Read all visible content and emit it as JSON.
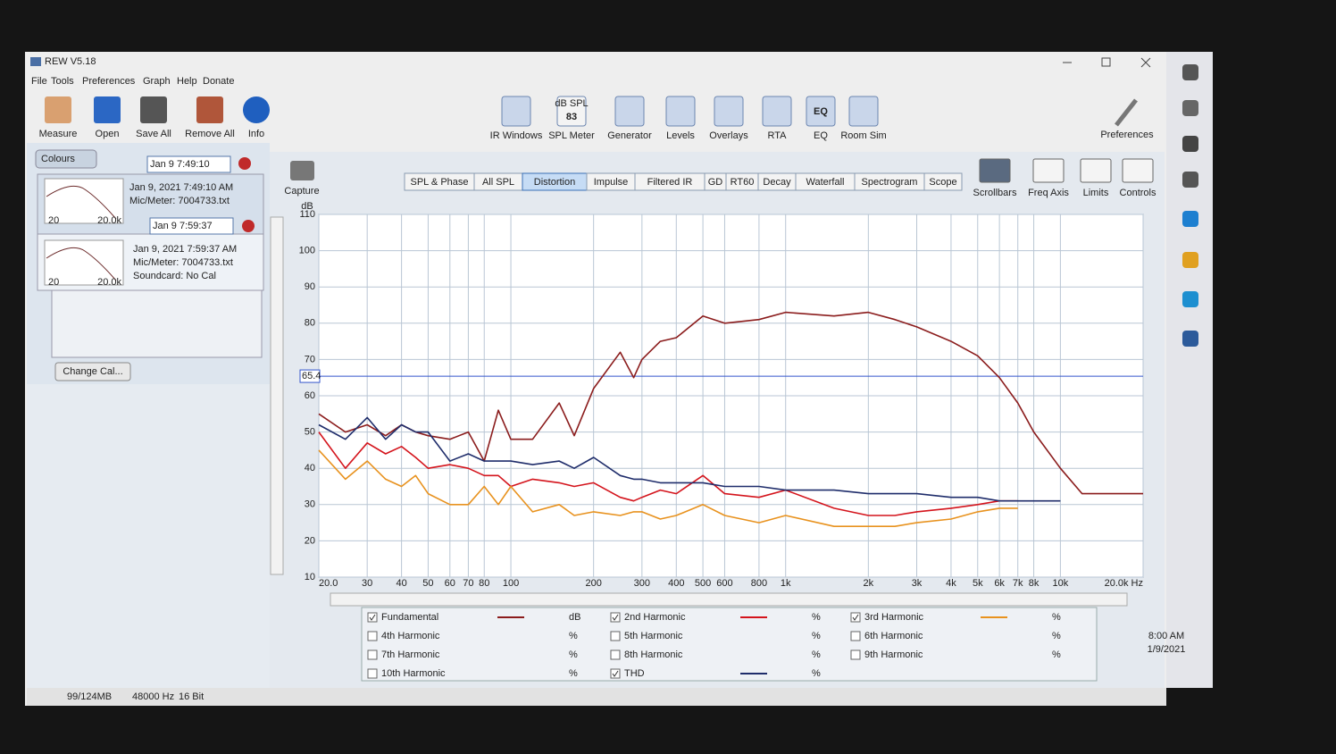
{
  "window": {
    "title": "REW V5.18"
  },
  "menu": [
    "File",
    "Tools",
    "Preferences",
    "Graph",
    "Help",
    "Donate"
  ],
  "toolbar_left": [
    "Measure",
    "Open",
    "Save All",
    "Remove All",
    "Info"
  ],
  "toolbar_center": [
    "IR Windows",
    "SPL Meter",
    "Generator",
    "Levels",
    "Overlays",
    "RTA",
    "EQ",
    "Room Sim"
  ],
  "spl_icon": {
    "unit": "dB SPL",
    "reading": "83"
  },
  "eq_icon": "EQ",
  "preferences": "Preferences",
  "capture": "Capture",
  "tabs": [
    "SPL & Phase",
    "All SPL",
    "Distortion",
    "Impulse",
    "Filtered IR",
    "GD",
    "RT60",
    "Decay",
    "Waterfall",
    "Spectrogram",
    "Scope"
  ],
  "active_tab": 2,
  "graph_tools": [
    "Scrollbars",
    "Freq Axis",
    "Limits",
    "Controls"
  ],
  "measurements": {
    "colours": "Colours",
    "items": [
      {
        "name": "Jan 9 7:49:10",
        "details": [
          "Jan 9, 2021 7:49:10 AM",
          "Mic/Meter: 7004733.txt"
        ],
        "axis_labels": [
          "20",
          "20.0k"
        ]
      },
      {
        "name": "Jan 9 7:59:37",
        "details": [
          "Jan 9, 2021 7:59:37 AM",
          "Mic/Meter: 7004733.txt",
          "Soundcard: No Cal"
        ],
        "axis_labels": [
          "20",
          "20.0k"
        ]
      }
    ],
    "change_cal": "Change Cal..."
  },
  "status_bar": [
    "99/124MB",
    "48000 Hz",
    "16 Bit"
  ],
  "taskbar": {
    "time": "8:00 AM",
    "date": "1/9/2021"
  },
  "chart_data": {
    "type": "line",
    "y_label": "dB",
    "x_scale": "log",
    "grid": true,
    "xlim": [
      20,
      20000
    ],
    "ylim": [
      10,
      110
    ],
    "yticks": [
      10,
      20,
      30,
      40,
      50,
      60,
      70,
      80,
      90,
      100,
      110
    ],
    "xticks": [
      {
        "value": 20,
        "label": "20.0"
      },
      30,
      40,
      50,
      60,
      70,
      80,
      100,
      200,
      300,
      400,
      500,
      600,
      800,
      {
        "value": 1000,
        "label": "1k"
      },
      {
        "value": 2000,
        "label": "2k"
      },
      {
        "value": 3000,
        "label": "3k"
      },
      {
        "value": 4000,
        "label": "4k"
      },
      {
        "value": 5000,
        "label": "5k"
      },
      {
        "value": 6000,
        "label": "6k"
      },
      {
        "value": 7000,
        "label": "7k"
      },
      {
        "value": 8000,
        "label": "8k"
      },
      {
        "value": 10000,
        "label": "10k"
      },
      {
        "value": 20000,
        "label": "20.0k Hz"
      }
    ],
    "cursor_value": 65.4,
    "x": [
      20,
      25,
      30,
      35,
      40,
      45,
      50,
      60,
      70,
      80,
      90,
      100,
      120,
      150,
      170,
      200,
      250,
      280,
      300,
      350,
      400,
      500,
      600,
      800,
      1000,
      1500,
      2000,
      2500,
      3000,
      4000,
      5000,
      6000,
      7000,
      8000,
      10000,
      12000,
      15000,
      20000
    ],
    "series": [
      {
        "name": "Fundamental",
        "unit": "dB",
        "color": "#8b1c1c",
        "values": [
          55,
          50,
          52,
          49,
          52,
          50,
          49,
          48,
          50,
          42,
          56,
          48,
          48,
          58,
          49,
          62,
          72,
          65,
          70,
          75,
          76,
          82,
          80,
          81,
          83,
          82,
          83,
          81,
          79,
          75,
          71,
          65,
          58,
          50,
          40,
          33,
          33,
          33
        ]
      },
      {
        "name": "2nd Harmonic",
        "unit": "%",
        "color": "#d4141c",
        "values": [
          50,
          40,
          47,
          44,
          46,
          43,
          40,
          41,
          40,
          38,
          38,
          35,
          37,
          36,
          35,
          36,
          32,
          31,
          32,
          34,
          33,
          38,
          33,
          32,
          34,
          29,
          27,
          27,
          28,
          29,
          30,
          31,
          31,
          null,
          null,
          null,
          null,
          null
        ]
      },
      {
        "name": "3rd Harmonic",
        "unit": "%",
        "color": "#e8921e",
        "values": [
          45,
          37,
          42,
          37,
          35,
          38,
          33,
          30,
          30,
          35,
          30,
          35,
          28,
          30,
          27,
          28,
          27,
          28,
          28,
          26,
          27,
          30,
          27,
          25,
          27,
          24,
          24,
          24,
          25,
          26,
          28,
          29,
          29,
          null,
          null,
          null,
          null,
          null
        ]
      },
      {
        "name": "THD",
        "unit": "%",
        "color": "#1f2d6b",
        "values": [
          52,
          48,
          54,
          48,
          52,
          50,
          50,
          42,
          44,
          42,
          42,
          42,
          41,
          42,
          40,
          43,
          38,
          37,
          37,
          36,
          36,
          36,
          35,
          35,
          34,
          34,
          33,
          33,
          33,
          32,
          32,
          31,
          31,
          31,
          31,
          null,
          null,
          null
        ]
      }
    ],
    "hidden_series": [
      {
        "name": "4th Harmonic",
        "unit": "%"
      },
      {
        "name": "5th Harmonic",
        "unit": "%"
      },
      {
        "name": "6th Harmonic",
        "unit": "%"
      },
      {
        "name": "7th Harmonic",
        "unit": "%"
      },
      {
        "name": "8th Harmonic",
        "unit": "%"
      },
      {
        "name": "9th Harmonic",
        "unit": "%"
      },
      {
        "name": "10th Harmonic",
        "unit": "%"
      }
    ]
  }
}
